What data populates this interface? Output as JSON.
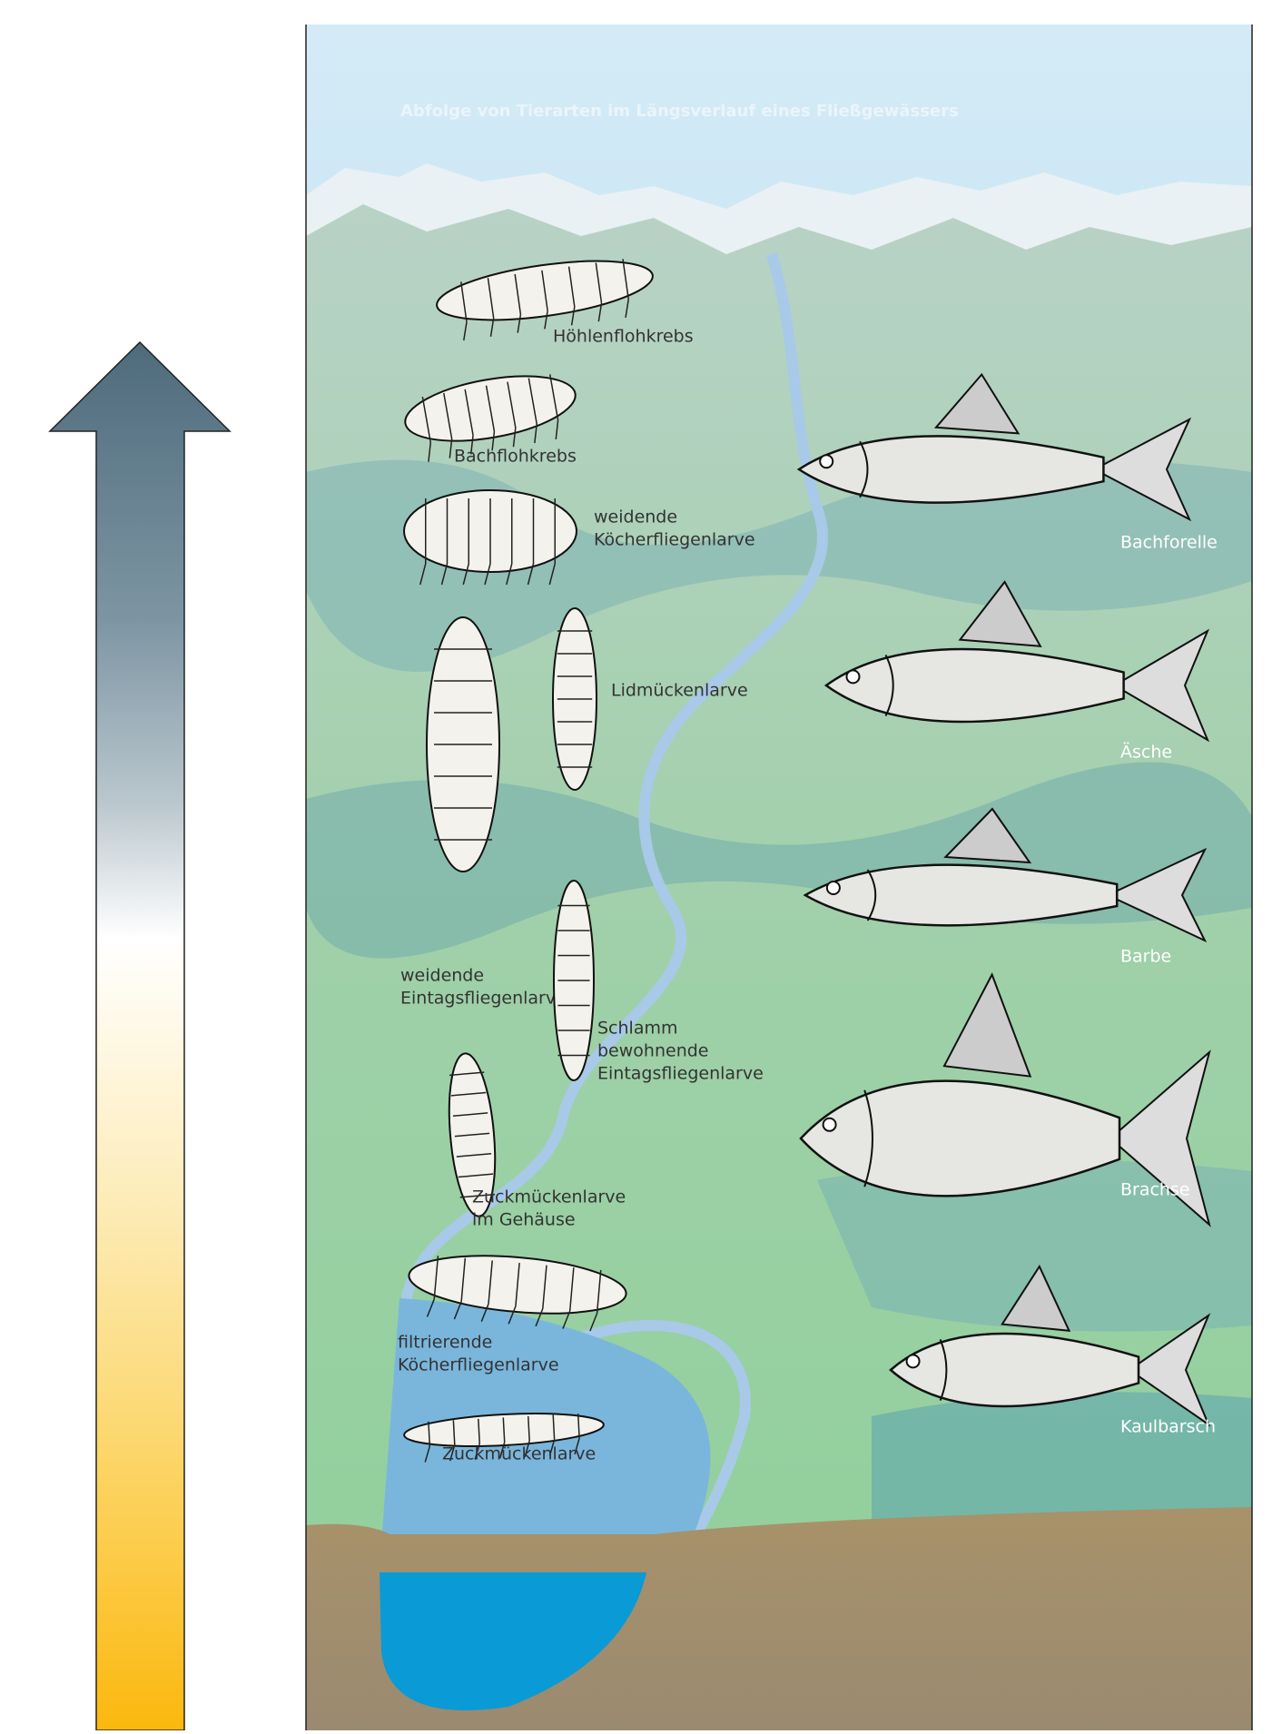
{
  "title": "Abfolge von Tierarten im Längsverlauf eines Fließgewässers",
  "invertebrates": [
    {
      "label": [
        "Höhlenflohkrebs"
      ]
    },
    {
      "label": [
        "Bachflohkrebs"
      ]
    },
    {
      "label": [
        "weidende",
        "Köcherfliegenlarve"
      ]
    },
    {
      "label": [
        "Lidmückenlarve"
      ]
    },
    {
      "label": [
        "weidende",
        "Eintagsfliegenlarve"
      ]
    },
    {
      "label": [
        "Schlamm",
        "bewohnende",
        "Eintagsfliegenlarve"
      ]
    },
    {
      "label": [
        "Zuckmückenlarve",
        "im Gehäuse"
      ]
    },
    {
      "label": [
        "filtrierende",
        "Köcherfliegenlarve"
      ]
    },
    {
      "label": [
        "Zuckmückenlarve"
      ]
    }
  ],
  "fishes": [
    {
      "label": "Bachforelle"
    },
    {
      "label": "Äsche"
    },
    {
      "label": "Barbe"
    },
    {
      "label": "Brachse"
    },
    {
      "label": "Kaulbarsch"
    }
  ]
}
